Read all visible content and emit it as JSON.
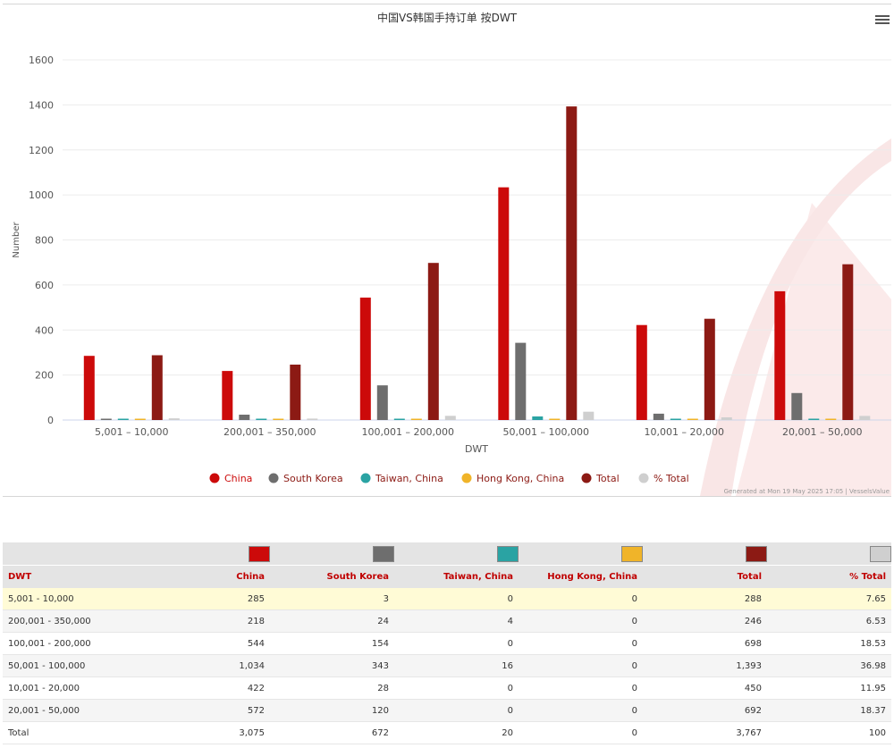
{
  "chart_data": {
    "type": "bar",
    "title": "中国VS韩国手持订单 按DWT",
    "xlabel": "DWT",
    "ylabel": "Number",
    "ylim": [
      0,
      1600
    ],
    "yticks": [
      0,
      200,
      400,
      600,
      800,
      1000,
      1200,
      1400,
      1600
    ],
    "categories": [
      "5,001 – 10,000",
      "200,001 – 350,000",
      "100,001 – 200,000",
      "50,001 – 100,000",
      "10,001 – 20,000",
      "20,001 – 50,000"
    ],
    "series": [
      {
        "name": "China",
        "color": "#cc0a0a",
        "values": [
          285,
          218,
          544,
          1034,
          422,
          572
        ]
      },
      {
        "name": "South Korea",
        "color": "#6e6e6e",
        "values": [
          3,
          24,
          154,
          343,
          28,
          120
        ]
      },
      {
        "name": "Taiwan, China",
        "color": "#2aa3a3",
        "values": [
          0,
          4,
          0,
          16,
          0,
          0
        ]
      },
      {
        "name": "Hong Kong, China",
        "color": "#f0b429",
        "values": [
          0,
          0,
          0,
          0,
          0,
          0
        ]
      },
      {
        "name": "Total",
        "color": "#8c1a14",
        "values": [
          288,
          246,
          698,
          1393,
          450,
          692
        ]
      },
      {
        "name": "% Total",
        "color": "#cfcfcf",
        "values": [
          7.65,
          6.53,
          18.53,
          36.98,
          11.95,
          18.37
        ]
      }
    ],
    "legend": "bottom-center",
    "grid": true,
    "credit": "Generated at Mon 19 May 2025 17:05 | VesselsValue"
  },
  "table": {
    "swatch_colors": [
      "#cc0a0a",
      "#6e6e6e",
      "#2aa3a3",
      "#f0b429",
      "#8c1a14",
      "#cfcfcf"
    ],
    "headers": [
      "DWT",
      "China",
      "South Korea",
      "Taiwan, China",
      "Hong Kong, China",
      "Total",
      "% Total"
    ],
    "rows": [
      [
        "5,001 - 10,000",
        "285",
        "3",
        "0",
        "0",
        "288",
        "7.65"
      ],
      [
        "200,001 - 350,000",
        "218",
        "24",
        "4",
        "0",
        "246",
        "6.53"
      ],
      [
        "100,001 - 200,000",
        "544",
        "154",
        "0",
        "0",
        "698",
        "18.53"
      ],
      [
        "50,001 - 100,000",
        "1,034",
        "343",
        "16",
        "0",
        "1,393",
        "36.98"
      ],
      [
        "10,001 - 20,000",
        "422",
        "28",
        "0",
        "0",
        "450",
        "11.95"
      ],
      [
        "20,001 - 50,000",
        "572",
        "120",
        "0",
        "0",
        "692",
        "18.37"
      ],
      [
        "Total",
        "3,075",
        "672",
        "20",
        "0",
        "3,767",
        "100"
      ]
    ]
  },
  "icons": {
    "menu": "hamburger-menu-icon"
  }
}
